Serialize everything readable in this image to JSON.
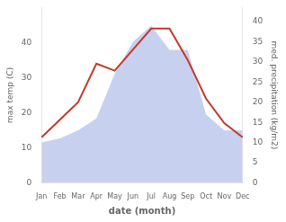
{
  "chart_data": {
    "type": "line",
    "xlabel": "date (month)",
    "ylabel": "max temp (C)",
    "y2label": "med. precipitation (kg/m2)",
    "categories": [
      "Jan",
      "Feb",
      "Mar",
      "Apr",
      "May",
      "Jun",
      "Jul",
      "Aug",
      "Sep",
      "Oct",
      "Nov",
      "Dec"
    ],
    "series": [
      {
        "type": "line",
        "color": "#c0392b",
        "values": [
          13,
          18,
          23,
          34,
          32,
          38,
          44,
          44,
          35,
          24,
          17,
          13
        ]
      },
      {
        "type": "area",
        "color": "#c8d0f0",
        "axis": "y2",
        "values": [
          10,
          11,
          13,
          16,
          27,
          35,
          39,
          33,
          33,
          17,
          13,
          13
        ]
      }
    ],
    "ylim": [
      0,
      50
    ],
    "yticks": [
      0,
      10,
      20,
      30,
      40
    ],
    "y2lim": [
      0,
      43.5
    ],
    "y2ticks": [
      0,
      5,
      10,
      15,
      20,
      25,
      30,
      35,
      40
    ],
    "grid": false
  }
}
